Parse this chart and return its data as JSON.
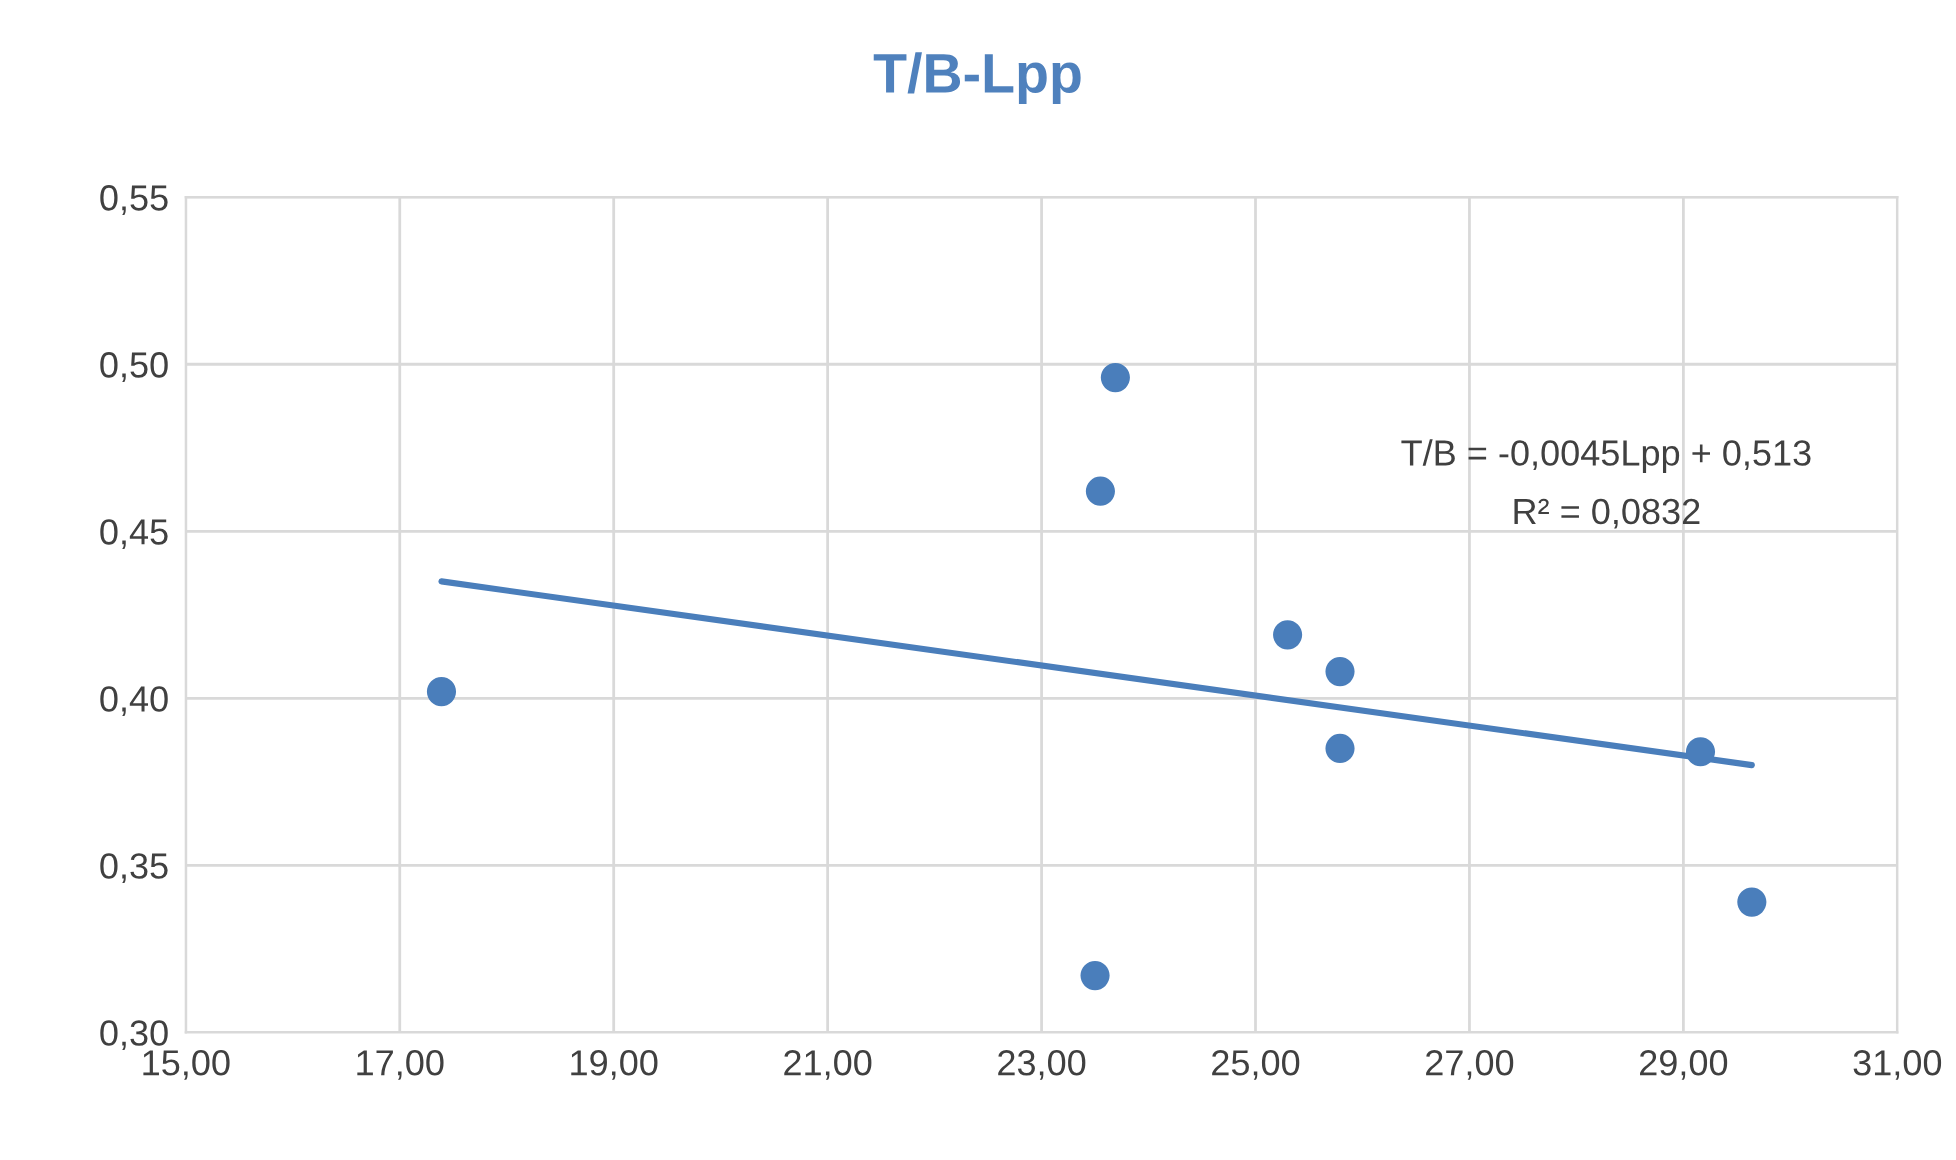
{
  "chart_data": {
    "type": "scatter",
    "title": "T/B-Lpp",
    "x": [
      17.39,
      23.69,
      23.55,
      25.3,
      25.79,
      25.79,
      29.16,
      29.64,
      23.5
    ],
    "series": [
      {
        "color": "#4a7ebb",
        "marker": "circle",
        "values": [
          0.402,
          0.496,
          0.462,
          0.419,
          0.408,
          0.385,
          0.384,
          0.339,
          0.317
        ]
      },
      {
        "type": "line",
        "color": "#4a7ebb",
        "x": [
          17.39,
          29.64
        ],
        "values": [
          0.435,
          0.38
        ]
      }
    ],
    "annotations": [
      "T/B = -0,0045Lpp + 0,513",
      "R² = 0,0832"
    ],
    "xlim": [
      15,
      31
    ],
    "ylim": [
      0.3,
      0.55
    ],
    "xticks": [
      {
        "value": 15,
        "label": "15,00"
      },
      {
        "value": 17,
        "label": "17,00"
      },
      {
        "value": 19,
        "label": "19,00"
      },
      {
        "value": 21,
        "label": "21,00"
      },
      {
        "value": 23,
        "label": "23,00"
      },
      {
        "value": 25,
        "label": "25,00"
      },
      {
        "value": 27,
        "label": "27,00"
      },
      {
        "value": 29,
        "label": "29,00"
      },
      {
        "value": 31,
        "label": "31,00"
      }
    ],
    "yticks": [
      {
        "value": 0.3,
        "label": "0,30"
      },
      {
        "value": 0.35,
        "label": "0,35"
      },
      {
        "value": 0.4,
        "label": "0,40"
      },
      {
        "value": 0.45,
        "label": "0,45"
      },
      {
        "value": 0.5,
        "label": "0,50"
      },
      {
        "value": 0.55,
        "label": "0,55"
      }
    ],
    "grid": true
  }
}
